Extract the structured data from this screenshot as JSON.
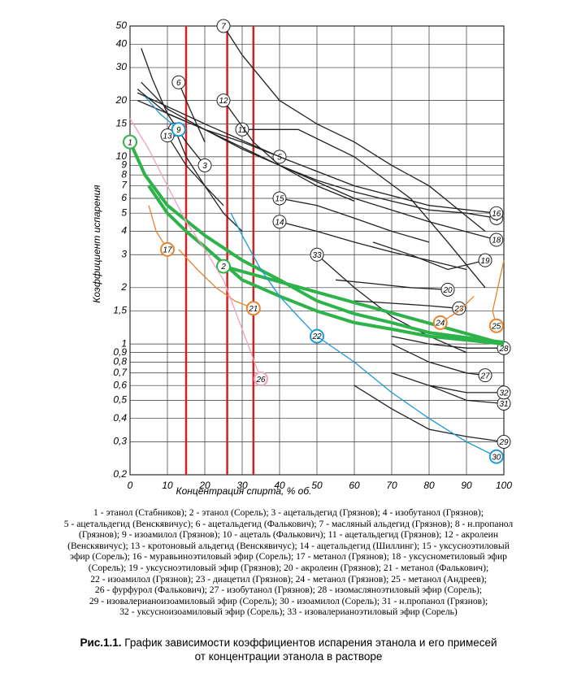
{
  "chart_data": {
    "type": "line",
    "x_label": "Концентрация спирта, % об.",
    "y_label": "Коэффициент испарения",
    "xlim": [
      0,
      100
    ],
    "ylim": [
      0.2,
      50
    ],
    "log_y": true,
    "grid": true,
    "xticks": [
      0,
      10,
      20,
      30,
      40,
      50,
      60,
      70,
      80,
      90,
      100
    ],
    "yticks": [
      {
        "value": 0.2,
        "label": "0,2"
      },
      {
        "value": 0.3,
        "label": "0,3"
      },
      {
        "value": 0.4,
        "label": "0,4"
      },
      {
        "value": 0.5,
        "label": "0,5"
      },
      {
        "value": 0.6,
        "label": "0,6"
      },
      {
        "value": 0.7,
        "label": "0,7"
      },
      {
        "value": 0.8,
        "label": "0,8"
      },
      {
        "value": 0.9,
        "label": "0,9"
      },
      1,
      {
        "value": 1.5,
        "label": "1,5"
      },
      2,
      3,
      4,
      5,
      6,
      7,
      8,
      9,
      10,
      15,
      20,
      30,
      40,
      50
    ],
    "vlines": {
      "color": "#d42020",
      "values": [
        15,
        26,
        33
      ]
    },
    "series": [
      {
        "name": "3",
        "color": "#222222",
        "x": [
          3,
          6,
          10,
          15,
          20
        ],
        "values": [
          38,
          26,
          17,
          12,
          9
        ]
      },
      {
        "name": "4",
        "color": "#222222",
        "x": [
          3,
          10,
          20,
          30,
          40,
          50,
          60,
          70,
          80,
          90,
          98
        ],
        "values": [
          25,
          18,
          14,
          11,
          9,
          7.5,
          6.5,
          5.8,
          5.2,
          5,
          4.7
        ]
      },
      {
        "name": "5",
        "color": "#222222",
        "x": [
          2,
          10,
          20,
          30,
          40
        ],
        "values": [
          23,
          17,
          14,
          12,
          10
        ]
      },
      {
        "name": "6",
        "color": "#222222",
        "x": [
          20,
          16,
          13
        ],
        "values": [
          12,
          18,
          25
        ]
      },
      {
        "name": "7",
        "color": "#222222",
        "x": [
          95,
          80,
          70,
          60,
          50,
          40,
          30,
          25
        ],
        "values": [
          4,
          7,
          9,
          12,
          15,
          20,
          35,
          50
        ]
      },
      {
        "name": "10",
        "color": "#222222",
        "x": [
          25,
          20,
          15,
          12
        ],
        "values": [
          5.5,
          7,
          10,
          14
        ]
      },
      {
        "name": "11",
        "color": "#222222",
        "x": [
          95,
          85,
          75,
          60,
          45,
          30
        ],
        "values": [
          2,
          3.5,
          6,
          10,
          14,
          14
        ]
      },
      {
        "name": "12",
        "color": "#222222",
        "x": [
          60,
          50,
          40,
          33,
          25
        ],
        "values": [
          5.8,
          7,
          9,
          12,
          20
        ]
      },
      {
        "name": "13",
        "color": "#222222",
        "x": [
          30,
          25,
          20,
          15,
          10
        ],
        "values": [
          4,
          5,
          7,
          9,
          13
        ]
      },
      {
        "name": "14",
        "color": "#222222",
        "x": [
          90,
          80,
          70,
          60,
          50,
          40
        ],
        "values": [
          2.5,
          2.8,
          3.1,
          3.5,
          4,
          4.5
        ]
      },
      {
        "name": "15",
        "color": "#222222",
        "x": [
          80,
          70,
          60,
          50,
          40
        ],
        "values": [
          3.5,
          4,
          4.7,
          5.5,
          6
        ]
      },
      {
        "name": "16",
        "color": "#222222",
        "x": [
          2,
          20,
          40,
          60,
          80,
          98
        ],
        "values": [
          22,
          15,
          10,
          7,
          5.5,
          5
        ]
      },
      {
        "name": "18",
        "color": "#222222",
        "x": [
          2,
          20,
          40,
          60,
          80,
          98
        ],
        "values": [
          20,
          14,
          9,
          6,
          4.5,
          3.6
        ]
      },
      {
        "name": "19",
        "color": "#222222",
        "x": [
          65,
          75,
          85,
          95
        ],
        "values": [
          3.5,
          3,
          2.5,
          2.8
        ]
      },
      {
        "name": "20",
        "color": "#222222",
        "x": [
          55,
          65,
          75,
          85
        ],
        "values": [
          2.2,
          2.1,
          2,
          1.95
        ]
      },
      {
        "name": "23",
        "color": "#222222",
        "x": [
          60,
          70,
          80,
          88
        ],
        "values": [
          1.7,
          1.65,
          1.6,
          1.55
        ]
      },
      {
        "name": "27",
        "color": "#222222",
        "x": [
          70,
          80,
          90,
          95
        ],
        "values": [
          1,
          0.8,
          0.7,
          0.68
        ]
      },
      {
        "name": "28",
        "color": "#222222",
        "x": [
          70,
          80,
          90,
          100
        ],
        "values": [
          1.1,
          1,
          0.95,
          0.95
        ]
      },
      {
        "name": "29",
        "color": "#222222",
        "x": [
          60,
          70,
          80,
          90,
          100
        ],
        "values": [
          0.6,
          0.45,
          0.35,
          0.32,
          0.3
        ]
      },
      {
        "name": "31",
        "color": "#222222",
        "x": [
          80,
          90,
          100
        ],
        "values": [
          0.6,
          0.5,
          0.48
        ]
      },
      {
        "name": "32",
        "color": "#222222",
        "x": [
          70,
          80,
          90,
          100
        ],
        "values": [
          0.7,
          0.6,
          0.55,
          0.55
        ]
      },
      {
        "name": "33",
        "color": "#222222",
        "x": [
          90,
          80,
          70,
          60,
          50
        ],
        "values": [
          0.9,
          1.1,
          1.4,
          2,
          3
        ]
      },
      {
        "name": "1",
        "color": "#2db34a",
        "emphasis": true,
        "x": [
          100,
          90,
          80,
          70,
          60,
          50,
          40,
          30,
          20,
          10,
          4,
          0
        ],
        "values": [
          1.02,
          1.08,
          1.15,
          1.3,
          1.45,
          1.7,
          2.2,
          2.8,
          3.8,
          5.5,
          8,
          12
        ]
      },
      {
        "name": "2",
        "color": "#2db34a",
        "emphasis": true,
        "x": [
          5,
          10,
          15,
          20,
          30,
          40,
          50,
          60,
          70,
          80,
          90,
          100,
          25
        ],
        "values": [
          7,
          5,
          4,
          3.3,
          2.2,
          1.8,
          1.5,
          1.3,
          1.2,
          1.1,
          1.05,
          1,
          2.6
        ]
      },
      {
        "name": "9",
        "color": "#1e9ad6",
        "x": [
          4,
          8,
          13
        ],
        "values": [
          21,
          17,
          14
        ]
      },
      {
        "name": "22",
        "color": "#1e9ad6",
        "x": [
          27,
          30,
          35,
          40,
          45,
          50
        ],
        "values": [
          5,
          3.8,
          2.5,
          1.8,
          1.4,
          1.1
        ]
      },
      {
        "name": "30",
        "color": "#1e9ad6",
        "x": [
          50,
          60,
          70,
          80,
          90,
          98
        ],
        "values": [
          1.1,
          0.8,
          0.55,
          0.4,
          0.3,
          0.25
        ]
      },
      {
        "name": "17",
        "color": "#e8832e",
        "x": [
          5,
          7,
          10
        ],
        "values": [
          5.5,
          4,
          3.2
        ]
      },
      {
        "name": "21",
        "color": "#e8832e",
        "x": [
          13,
          18,
          23,
          28,
          33
        ],
        "values": [
          3.2,
          2.5,
          2,
          1.7,
          1.55
        ]
      },
      {
        "name": "24",
        "color": "#e8832e",
        "x": [
          92,
          88,
          83
        ],
        "values": [
          1.8,
          1.5,
          1.3
        ]
      },
      {
        "name": "25",
        "color": "#e8832e",
        "x": [
          100,
          97,
          98
        ],
        "values": [
          2.8,
          1.5,
          1.25
        ]
      },
      {
        "name": "26",
        "color": "#f0a0c0",
        "x": [
          0,
          5,
          10,
          15,
          20,
          25,
          30,
          35
        ],
        "values": [
          16,
          11,
          7,
          4.5,
          3.2,
          2.2,
          1.2,
          0.65
        ]
      }
    ]
  },
  "legend_lines": [
    "1 - этанол (Стабников); 2 - этанол (Сорель); 3 - ацетальдегид (Грязнов); 4 - изобутанол (Грязнов);",
    "5 - ацетальдегид (Венскявичус); 6 - ацетальдегид (Фалькович); 7 - масляный альдегид (Грязнов); 8 - н.пропанол",
    "(Грязнов); 9 - изоамилол (Грязнов); 10 - ацеталь (Фалькович); 11 - ацетальдегид (Грязнов); 12 - акролеин",
    "(Венскявичус); 13 - кротоновый альдегид (Венскявичус); 14 - ацетальдегид (Шиллинг); 15 - уксусноэтиловый",
    "эфир (Сорель); 16 - муравьиноэтиловый эфир (Сорель); 17 - метанол (Грязнов); 18 - уксуснометиловый эфир",
    "(Сорель); 19 - уксусноэтиловый эфир (Грязнов); 20 - акролеин (Грязнов); 21 - метанол (Фалькович);",
    "22 - изоамилол (Грязнов); 23 - диацетил (Грязнов); 24 - метанол (Грязнов); 25 - метанол (Андреев);",
    "26 - фурфурол (Фалькович); 27 - изобутанол (Грязнов); 28 - изомасляноэтиловый эфир (Сорель);",
    "29 - изовалерианоизоамиловый эфир (Сорель); 30 - изоамилол (Сорель); 31 - н.пропанол (Грязнов);",
    "32 - уксусноизоамиловый эфир (Сорель); 33 - изовалерианоэтиловый эфир (Сорель)"
  ],
  "caption": {
    "label": "Рис.1.1.",
    "lines": [
      "График зависимости коэффициентов испарения этанола и его примесей",
      "от концентрации этанола в растворе"
    ]
  }
}
